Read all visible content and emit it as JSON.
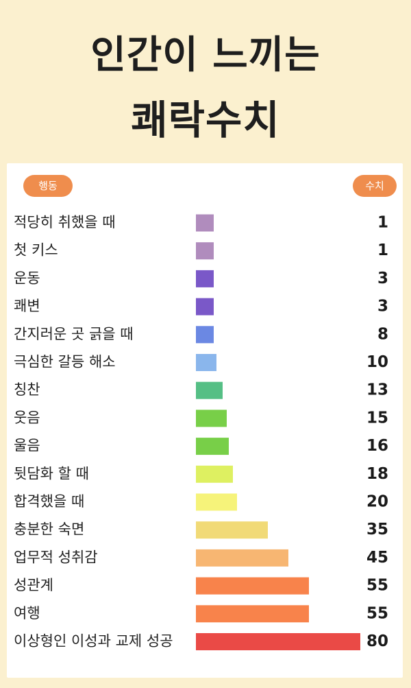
{
  "title": {
    "line1": "인간이 느끼는",
    "line2": "쾌락수치"
  },
  "header": {
    "left": "행동",
    "right": "수치"
  },
  "chart_data": {
    "type": "bar",
    "orientation": "horizontal",
    "categories": [
      "적당히 취했을 때",
      "첫 키스",
      "운동",
      "쾌변",
      "간지러운 곳 긁을 때",
      "극심한 갈등 해소",
      "칭찬",
      "웃음",
      "울음",
      "뒷담화 할 때",
      "합격했을 때",
      "충분한 숙면",
      "업무적 성취감",
      "성관계",
      "여행",
      "이상형인 이성과 교제 성공"
    ],
    "values": [
      1,
      1,
      3,
      3,
      8,
      10,
      13,
      15,
      16,
      18,
      20,
      35,
      45,
      55,
      55,
      80
    ],
    "colors": [
      "#b08cbd",
      "#b08cbd",
      "#7a58c8",
      "#7a58c8",
      "#6b88e3",
      "#8ab6ec",
      "#55bf85",
      "#78cf48",
      "#78cf48",
      "#def061",
      "#f6f37a",
      "#f1da77",
      "#f7b672",
      "#f8834b",
      "#f8834b",
      "#ea4a46"
    ]
  }
}
